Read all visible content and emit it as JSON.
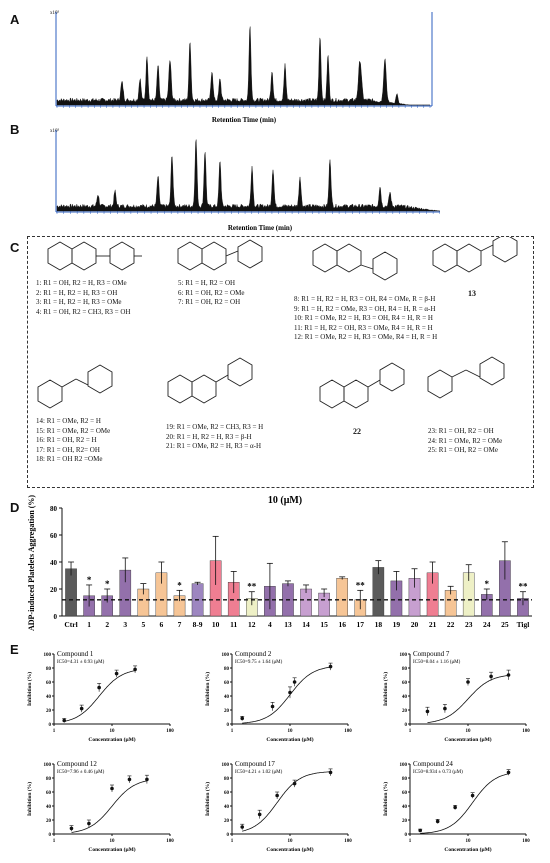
{
  "panels": {
    "A": "A",
    "B": "B",
    "C": "C",
    "D": "D",
    "E": "E"
  },
  "chromatograms": [
    {
      "id": "A",
      "scale_label": "x10⁵",
      "xlabel": "Retention Time (min)"
    },
    {
      "id": "B",
      "scale_label": "x10⁵",
      "xlabel": "Retention Time (min)"
    }
  ],
  "structures": {
    "group1": [
      "1: R1 = OH, R2 = H, R3 = OMe",
      "2: R1 = H, R2 = H, R3 = OH",
      "3: R1 = H, R2 = H, R3 = OMe",
      "4: R1 = OH, R2 = CH3, R3 = OH"
    ],
    "group2": [
      "5: R1 = H, R2 = OH",
      "6: R1 = OH, R2 = OMe",
      "7: R1 = OH, R2 = OH"
    ],
    "group3": [
      "8: R1 = H, R2 = H, R3 = OH, R4 = OMe, R = β-H",
      "9: R1 = H, R2 = OMe, R3 = OH, R4 = H, R = α-H",
      "10: R1 = OMe, R2 = H, R3 = OH, R4 = H, R = H",
      "11: R1 = H, R2 = OH, R3 = OMe, R4 = H, R = H",
      "12: R1 = OMe, R2 = H, R3 = OMe, R4 = H, R = H"
    ],
    "compound13": "13",
    "group4": [
      "14: R1 = OMe, R2 = H",
      "15: R1 = OMe, R2 = OMe",
      "16: R1 = OH, R2 = H",
      "17: R1 = OH, R2= OH",
      "18: R1 = OH R2 =OMe"
    ],
    "group5": [
      "19: R1 = OMe, R2 = CH3, R3 = H",
      "20: R1 = H, R2 = H, R3 = β-H",
      "21: R1 = OMe, R2 = H, R3 = α-H"
    ],
    "compound22": "22",
    "group6": [
      "23: R1 = OH, R2 = OH",
      "24: R1 = OMe, R2 = OMe",
      "25: R1 = OH, R2 = OMe"
    ]
  },
  "chart_data": [
    {
      "type": "bar",
      "title": "10 (μM)",
      "ylabel": "ADP-induced Platelets Aggregation (%)",
      "ylim": [
        0,
        80
      ],
      "yticks": [
        0,
        20,
        40,
        60,
        80
      ],
      "dashed_line": 12,
      "categories": [
        "Ctrl",
        "1",
        "2",
        "3",
        "5",
        "6",
        "7",
        "8-9",
        "10",
        "11",
        "12",
        "4",
        "13",
        "14",
        "15",
        "16",
        "17",
        "18",
        "19",
        "20",
        "21",
        "22",
        "23",
        "24",
        "25",
        "Tigl"
      ],
      "values": [
        35,
        15,
        15,
        34,
        20,
        32,
        15,
        24,
        41,
        25,
        13,
        22,
        24,
        20,
        17,
        28,
        12,
        36,
        26,
        28,
        32,
        19,
        32,
        16,
        41,
        13
      ],
      "errors": [
        5,
        8,
        5,
        9,
        4,
        8,
        4,
        1,
        18,
        8,
        5,
        17,
        2,
        3,
        3,
        1,
        7,
        5,
        7,
        7,
        8,
        3,
        6,
        4,
        14,
        5
      ],
      "significance": [
        "",
        "*",
        "*",
        "",
        "",
        "",
        "*",
        "",
        "",
        "",
        "**",
        "",
        "",
        "",
        "",
        "",
        "**",
        "",
        "",
        "",
        "",
        "",
        "",
        "*",
        "",
        "**"
      ],
      "colors": [
        "#5a5a5a",
        "#9370ab",
        "#9370ab",
        "#9370ab",
        "#f6c596",
        "#f6c596",
        "#f6c596",
        "#9d86c0",
        "#ef7e92",
        "#ef7e92",
        "#eef0c6",
        "#9370ab",
        "#9370ab",
        "#c79fd0",
        "#c79fd0",
        "#f6c596",
        "#f6c596",
        "#5a5a5a",
        "#9370ab",
        "#c79fd0",
        "#ef7e92",
        "#f6c596",
        "#eef0c6",
        "#9370ab",
        "#9370ab",
        "#9370ab"
      ]
    },
    {
      "type": "scatter",
      "subplots": [
        {
          "title": "Compound 1",
          "ic50": "IC50=4.31 ± 0.93 (μM)",
          "x": [
            1.5,
            3,
            6,
            12,
            25
          ],
          "y": [
            5,
            22,
            52,
            72,
            78
          ],
          "errors": [
            3,
            5,
            6,
            5,
            5
          ]
        },
        {
          "title": "Compound 2",
          "ic50": "IC50=9.75 ± 1.64 (μM)",
          "x": [
            1.5,
            5,
            10,
            12,
            50
          ],
          "y": [
            8,
            25,
            45,
            60,
            82
          ],
          "errors": [
            3,
            6,
            8,
            6,
            5
          ]
        },
        {
          "title": "Compound 7",
          "ic50": "IC50=8.04 ± 1.16 (μM)",
          "x": [
            2,
            4,
            10,
            25,
            50
          ],
          "y": [
            18,
            22,
            60,
            68,
            70
          ],
          "errors": [
            6,
            6,
            5,
            6,
            7
          ]
        },
        {
          "title": "Compound 12",
          "ic50": "IC50=7.96 ± 0.46 (μM)",
          "x": [
            2,
            4,
            10,
            20,
            40
          ],
          "y": [
            8,
            15,
            65,
            78,
            78
          ],
          "errors": [
            4,
            5,
            5,
            5,
            6
          ]
        },
        {
          "title": "Compound 17",
          "ic50": "IC50=4.21 ± 1.02 (μM)",
          "x": [
            1.5,
            3,
            6,
            12,
            50
          ],
          "y": [
            10,
            28,
            55,
            72,
            88
          ],
          "errors": [
            4,
            6,
            5,
            5,
            5
          ]
        },
        {
          "title": "Compound 24",
          "ic50": "IC50=8.934 ± 0.73 (μM)",
          "x": [
            1.5,
            3,
            6,
            12,
            50
          ],
          "y": [
            5,
            18,
            38,
            55,
            88
          ],
          "errors": [
            2,
            3,
            3,
            4,
            4
          ]
        }
      ],
      "xlabel": "Concentration (μM)",
      "ylabel": "Inhibition (%)",
      "xticks": [
        "1",
        "10",
        "100"
      ],
      "yticks": [
        "0",
        "20",
        "40",
        "60",
        "80",
        "100"
      ],
      "xlim": [
        1,
        100
      ],
      "ylim": [
        0,
        100
      ]
    }
  ]
}
